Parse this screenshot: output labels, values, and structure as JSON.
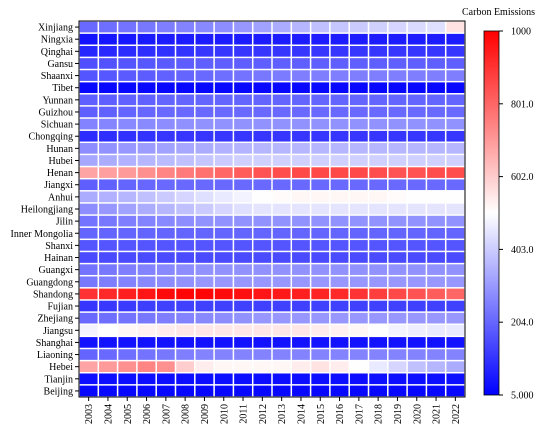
{
  "chart_data": {
    "type": "heatmap",
    "title": "",
    "xlabel": "",
    "ylabel": "",
    "x": [
      "2003",
      "2004",
      "2005",
      "2006",
      "2007",
      "2008",
      "2009",
      "2010",
      "2011",
      "2012",
      "2013",
      "2014",
      "2015",
      "2016",
      "2017",
      "2018",
      "2019",
      "2020",
      "2021",
      "2022"
    ],
    "y": [
      "Xinjiang",
      "Ningxia",
      "Qinghai",
      "Gansu",
      "Shaanxi",
      "Tibet",
      "Yunnan",
      "Guizhou",
      "Sichuan",
      "Chongqing",
      "Hunan",
      "Hubei",
      "Henan",
      "Jiangxi",
      "Anhui",
      "Heilongjiang",
      "Jilin",
      "Inner Mongolia",
      "Shanxi",
      "Hainan",
      "Guangxi",
      "Guangdong",
      "Shandong",
      "Fujian",
      "Zhejiang",
      "Jiangsu",
      "Shanghai",
      "Liaoning",
      "Hebei",
      "Tianjin",
      "Beijing"
    ],
    "values": [
      [
        210,
        220,
        230,
        240,
        250,
        260,
        270,
        280,
        300,
        320,
        340,
        360,
        380,
        390,
        400,
        410,
        420,
        430,
        440,
        560
      ],
      [
        40,
        45,
        50,
        55,
        60,
        60,
        60,
        60,
        60,
        60,
        60,
        60,
        60,
        60,
        60,
        60,
        60,
        60,
        60,
        60
      ],
      [
        80,
        85,
        90,
        95,
        100,
        105,
        110,
        110,
        110,
        110,
        110,
        110,
        110,
        110,
        110,
        110,
        110,
        110,
        110,
        110
      ],
      [
        160,
        165,
        170,
        175,
        180,
        185,
        190,
        190,
        190,
        190,
        190,
        190,
        190,
        190,
        190,
        190,
        190,
        190,
        190,
        190
      ],
      [
        170,
        175,
        180,
        185,
        195,
        200,
        210,
        220,
        230,
        240,
        245,
        250,
        250,
        250,
        250,
        250,
        250,
        250,
        250,
        250
      ],
      [
        20,
        20,
        20,
        20,
        20,
        20,
        20,
        20,
        20,
        20,
        20,
        20,
        20,
        20,
        20,
        20,
        20,
        20,
        20,
        20
      ],
      [
        190,
        190,
        195,
        195,
        200,
        200,
        200,
        200,
        200,
        200,
        200,
        200,
        200,
        200,
        200,
        200,
        200,
        200,
        200,
        200
      ],
      [
        190,
        195,
        200,
        205,
        210,
        210,
        210,
        210,
        210,
        210,
        210,
        210,
        210,
        210,
        210,
        210,
        210,
        210,
        210,
        210
      ],
      [
        260,
        265,
        270,
        275,
        280,
        285,
        290,
        290,
        290,
        290,
        290,
        290,
        290,
        290,
        290,
        290,
        290,
        290,
        290,
        290
      ],
      [
        90,
        95,
        100,
        105,
        110,
        110,
        110,
        110,
        110,
        110,
        110,
        110,
        110,
        110,
        110,
        110,
        110,
        110,
        110,
        110
      ],
      [
        280,
        290,
        300,
        310,
        320,
        330,
        340,
        350,
        355,
        360,
        360,
        360,
        360,
        360,
        360,
        360,
        360,
        360,
        360,
        360
      ],
      [
        330,
        340,
        350,
        360,
        370,
        380,
        390,
        400,
        410,
        410,
        410,
        410,
        410,
        410,
        410,
        410,
        410,
        410,
        410,
        410
      ],
      [
        680,
        690,
        700,
        720,
        740,
        760,
        780,
        800,
        820,
        840,
        850,
        860,
        860,
        860,
        860,
        850,
        840,
        840,
        850,
        850
      ],
      [
        190,
        195,
        200,
        205,
        210,
        210,
        210,
        210,
        210,
        210,
        210,
        210,
        210,
        210,
        210,
        210,
        210,
        210,
        210,
        210
      ],
      [
        340,
        350,
        360,
        380,
        400,
        420,
        440,
        460,
        480,
        500,
        510,
        520,
        520,
        520,
        520,
        520,
        510,
        500,
        500,
        500
      ],
      [
        280,
        300,
        320,
        340,
        360,
        380,
        400,
        420,
        440,
        450,
        450,
        450,
        450,
        450,
        450,
        450,
        450,
        450,
        450,
        450
      ],
      [
        230,
        240,
        250,
        260,
        270,
        280,
        290,
        290,
        290,
        290,
        290,
        290,
        290,
        290,
        290,
        290,
        290,
        290,
        290,
        290
      ],
      [
        200,
        200,
        200,
        200,
        200,
        200,
        200,
        200,
        200,
        200,
        200,
        200,
        200,
        200,
        200,
        200,
        200,
        200,
        200,
        200
      ],
      [
        170,
        170,
        170,
        170,
        170,
        170,
        170,
        170,
        170,
        170,
        170,
        170,
        170,
        170,
        170,
        170,
        170,
        170,
        170,
        170
      ],
      [
        150,
        150,
        150,
        150,
        150,
        150,
        150,
        150,
        150,
        150,
        150,
        150,
        150,
        150,
        150,
        150,
        150,
        150,
        150,
        150
      ],
      [
        230,
        240,
        250,
        260,
        270,
        280,
        290,
        290,
        290,
        290,
        290,
        290,
        290,
        290,
        290,
        290,
        290,
        290,
        290,
        290
      ],
      [
        240,
        250,
        260,
        270,
        280,
        290,
        300,
        300,
        300,
        300,
        300,
        300,
        300,
        300,
        300,
        300,
        300,
        300,
        300,
        300
      ],
      [
        900,
        920,
        940,
        960,
        980,
        990,
        990,
        980,
        970,
        960,
        950,
        940,
        930,
        920,
        900,
        880,
        860,
        840,
        820,
        800
      ],
      [
        110,
        115,
        120,
        125,
        130,
        130,
        130,
        130,
        130,
        130,
        130,
        130,
        130,
        130,
        130,
        130,
        130,
        130,
        130,
        130
      ],
      [
        210,
        220,
        230,
        240,
        250,
        260,
        270,
        280,
        290,
        300,
        300,
        300,
        300,
        300,
        300,
        300,
        300,
        300,
        300,
        300
      ],
      [
        480,
        500,
        520,
        530,
        540,
        550,
        550,
        550,
        550,
        550,
        550,
        550,
        540,
        530,
        520,
        500,
        480,
        470,
        460,
        460
      ],
      [
        40,
        40,
        40,
        40,
        40,
        40,
        40,
        40,
        40,
        40,
        40,
        40,
        40,
        40,
        40,
        40,
        40,
        40,
        40,
        40
      ],
      [
        200,
        210,
        220,
        230,
        240,
        250,
        260,
        260,
        260,
        260,
        260,
        260,
        260,
        260,
        260,
        260,
        260,
        260,
        260,
        260
      ],
      [
        680,
        700,
        720,
        740,
        720,
        600,
        540,
        520,
        520,
        520,
        520,
        540,
        560,
        540,
        500,
        460,
        420,
        380,
        360,
        340
      ],
      [
        30,
        30,
        30,
        30,
        30,
        30,
        30,
        30,
        30,
        30,
        30,
        30,
        30,
        30,
        30,
        30,
        30,
        30,
        30,
        30
      ],
      [
        20,
        20,
        20,
        20,
        20,
        20,
        20,
        20,
        20,
        20,
        20,
        20,
        20,
        20,
        20,
        20,
        20,
        20,
        20,
        20
      ]
    ],
    "colorbar": {
      "title": "Carbon Emissions",
      "min": 5.0,
      "max": 1000,
      "ticks": [
        "1000",
        "801.0",
        "602.0",
        "403.0",
        "204.0",
        "5.000"
      ],
      "colors": [
        "#0000ff",
        "#ffffff",
        "#ff0000"
      ]
    }
  }
}
